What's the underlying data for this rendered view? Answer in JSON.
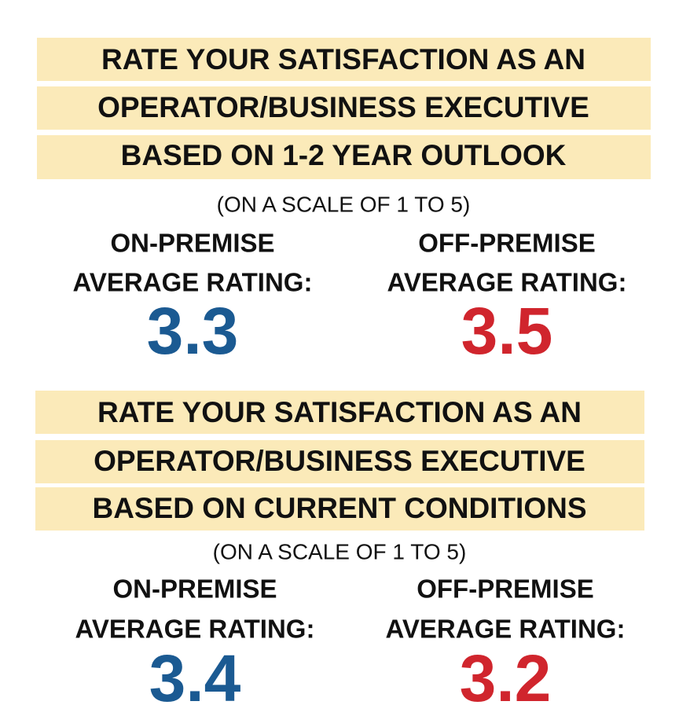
{
  "sections": [
    {
      "title_lines": [
        "RATE YOUR SATISFACTION AS AN",
        "OPERATOR/BUSINESS EXECUTIVE",
        "BASED ON 1-2 YEAR OUTLOOK"
      ],
      "scale_note": "(ON A SCALE OF 1 TO 5)",
      "columns": [
        {
          "label_lines": [
            "ON-PREMISE",
            "AVERAGE RATING:"
          ],
          "value": 3.3
        },
        {
          "label_lines": [
            "OFF-PREMISE",
            "AVERAGE RATING:"
          ],
          "value": 3.5
        }
      ]
    },
    {
      "title_lines": [
        "RATE YOUR SATISFACTION AS AN",
        "OPERATOR/BUSINESS EXECUTIVE",
        "BASED ON CURRENT CONDITIONS"
      ],
      "scale_note": "(ON A SCALE OF 1 TO 5)",
      "columns": [
        {
          "label_lines": [
            "ON-PREMISE",
            "AVERAGE RATING:"
          ],
          "value": 3.4
        },
        {
          "label_lines": [
            "OFF-PREMISE",
            "AVERAGE RATING:"
          ],
          "value": 3.2
        }
      ]
    }
  ]
}
